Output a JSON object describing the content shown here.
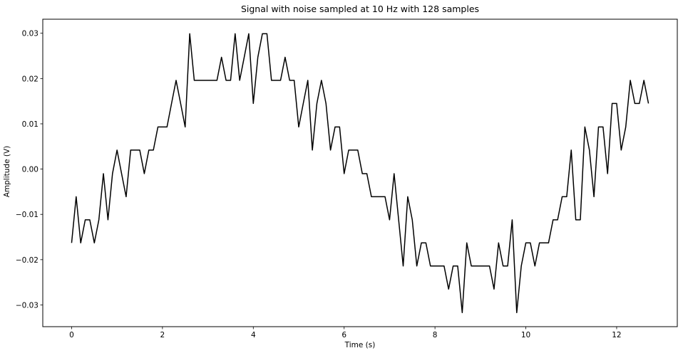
{
  "chart_data": {
    "type": "line",
    "title": "Signal with noise sampled at 10 Hz with 128 samples",
    "xlabel": "Time (s)",
    "ylabel": "Amplitude (V)",
    "xlim": [
      -0.635,
      13.335
    ],
    "ylim": [
      -0.0348,
      0.0331
    ],
    "xticks": [
      0,
      2,
      4,
      6,
      8,
      10,
      12
    ],
    "xtick_labels": [
      "0",
      "2",
      "4",
      "6",
      "8",
      "10",
      "12"
    ],
    "yticks": [
      -0.03,
      -0.02,
      -0.01,
      0.0,
      0.01,
      0.02,
      0.03
    ],
    "ytick_labels": [
      "−0.03",
      "−0.02",
      "−0.01",
      "0.00",
      "0.01",
      "0.02",
      "0.03"
    ],
    "grid": false,
    "line_color": "#000000",
    "series": [
      {
        "x": [
          0.0,
          0.1,
          0.2,
          0.3,
          0.4,
          0.5,
          0.6,
          0.7,
          0.8,
          0.9,
          1.0,
          1.1,
          1.2,
          1.3,
          1.4,
          1.5,
          1.6,
          1.7,
          1.8,
          1.9,
          2.0,
          2.1,
          2.2,
          2.3,
          2.4,
          2.5,
          2.6,
          2.7,
          2.8,
          2.9,
          3.0,
          3.1,
          3.2,
          3.3,
          3.4,
          3.5,
          3.6,
          3.7,
          3.8,
          3.9,
          4.0,
          4.1,
          4.2,
          4.3,
          4.4,
          4.5,
          4.6,
          4.7,
          4.8,
          4.9,
          5.0,
          5.1,
          5.2,
          5.3,
          5.4,
          5.5,
          5.6,
          5.7,
          5.8,
          5.9,
          6.0,
          6.1,
          6.2,
          6.3,
          6.4,
          6.5,
          6.6,
          6.7,
          6.8,
          6.9,
          7.0,
          7.1,
          7.2,
          7.3,
          7.4,
          7.5,
          7.6,
          7.7,
          7.8,
          7.9,
          8.0,
          8.1,
          8.2,
          8.3,
          8.4,
          8.5,
          8.6,
          8.7,
          8.8,
          8.9,
          9.0,
          9.1,
          9.2,
          9.3,
          9.4,
          9.5,
          9.6,
          9.7,
          9.8,
          9.9,
          10.0,
          10.1,
          10.2,
          10.3,
          10.4,
          10.5,
          10.6,
          10.7,
          10.8,
          10.9,
          11.0,
          11.1,
          11.2,
          11.3,
          11.4,
          11.5,
          11.6,
          11.7,
          11.8,
          11.9,
          12.0,
          12.1,
          12.2,
          12.3,
          12.4,
          12.5,
          12.6,
          12.7
        ],
        "values": [
          -0.0163,
          -0.0061,
          -0.0163,
          -0.0112,
          -0.0112,
          -0.0163,
          -0.0112,
          -0.001,
          -0.0112,
          -0.001,
          0.0042,
          -0.001,
          -0.0061,
          0.0042,
          0.0042,
          0.0042,
          -0.001,
          0.0042,
          0.0042,
          0.0093,
          0.0093,
          0.0093,
          0.0145,
          0.0196,
          0.0145,
          0.0093,
          0.0299,
          0.0196,
          0.0196,
          0.0196,
          0.0196,
          0.0196,
          0.0196,
          0.0247,
          0.0196,
          0.0196,
          0.0299,
          0.0196,
          0.0247,
          0.0299,
          0.0145,
          0.0247,
          0.0299,
          0.0299,
          0.0196,
          0.0196,
          0.0196,
          0.0247,
          0.0196,
          0.0196,
          0.0093,
          0.0145,
          0.0196,
          0.0042,
          0.0145,
          0.0196,
          0.0145,
          0.0042,
          0.0093,
          0.0093,
          -0.001,
          0.0042,
          0.0042,
          0.0042,
          -0.001,
          -0.001,
          -0.0061,
          -0.0061,
          -0.0061,
          -0.0061,
          -0.0112,
          -0.001,
          -0.0112,
          -0.0214,
          -0.0061,
          -0.0112,
          -0.0214,
          -0.0163,
          -0.0163,
          -0.0214,
          -0.0214,
          -0.0214,
          -0.0214,
          -0.0265,
          -0.0214,
          -0.0214,
          -0.0317,
          -0.0163,
          -0.0214,
          -0.0214,
          -0.0214,
          -0.0214,
          -0.0214,
          -0.0265,
          -0.0163,
          -0.0214,
          -0.0214,
          -0.0112,
          -0.0317,
          -0.0214,
          -0.0163,
          -0.0163,
          -0.0214,
          -0.0163,
          -0.0163,
          -0.0163,
          -0.0112,
          -0.0112,
          -0.0061,
          -0.0061,
          0.0042,
          -0.0112,
          -0.0112,
          0.0093,
          0.0042,
          -0.0061,
          0.0093,
          0.0093,
          -0.001,
          0.0145,
          0.0145,
          0.0042,
          0.0093,
          0.0196,
          0.0145,
          0.0145,
          0.0196,
          0.0145
        ]
      }
    ]
  }
}
